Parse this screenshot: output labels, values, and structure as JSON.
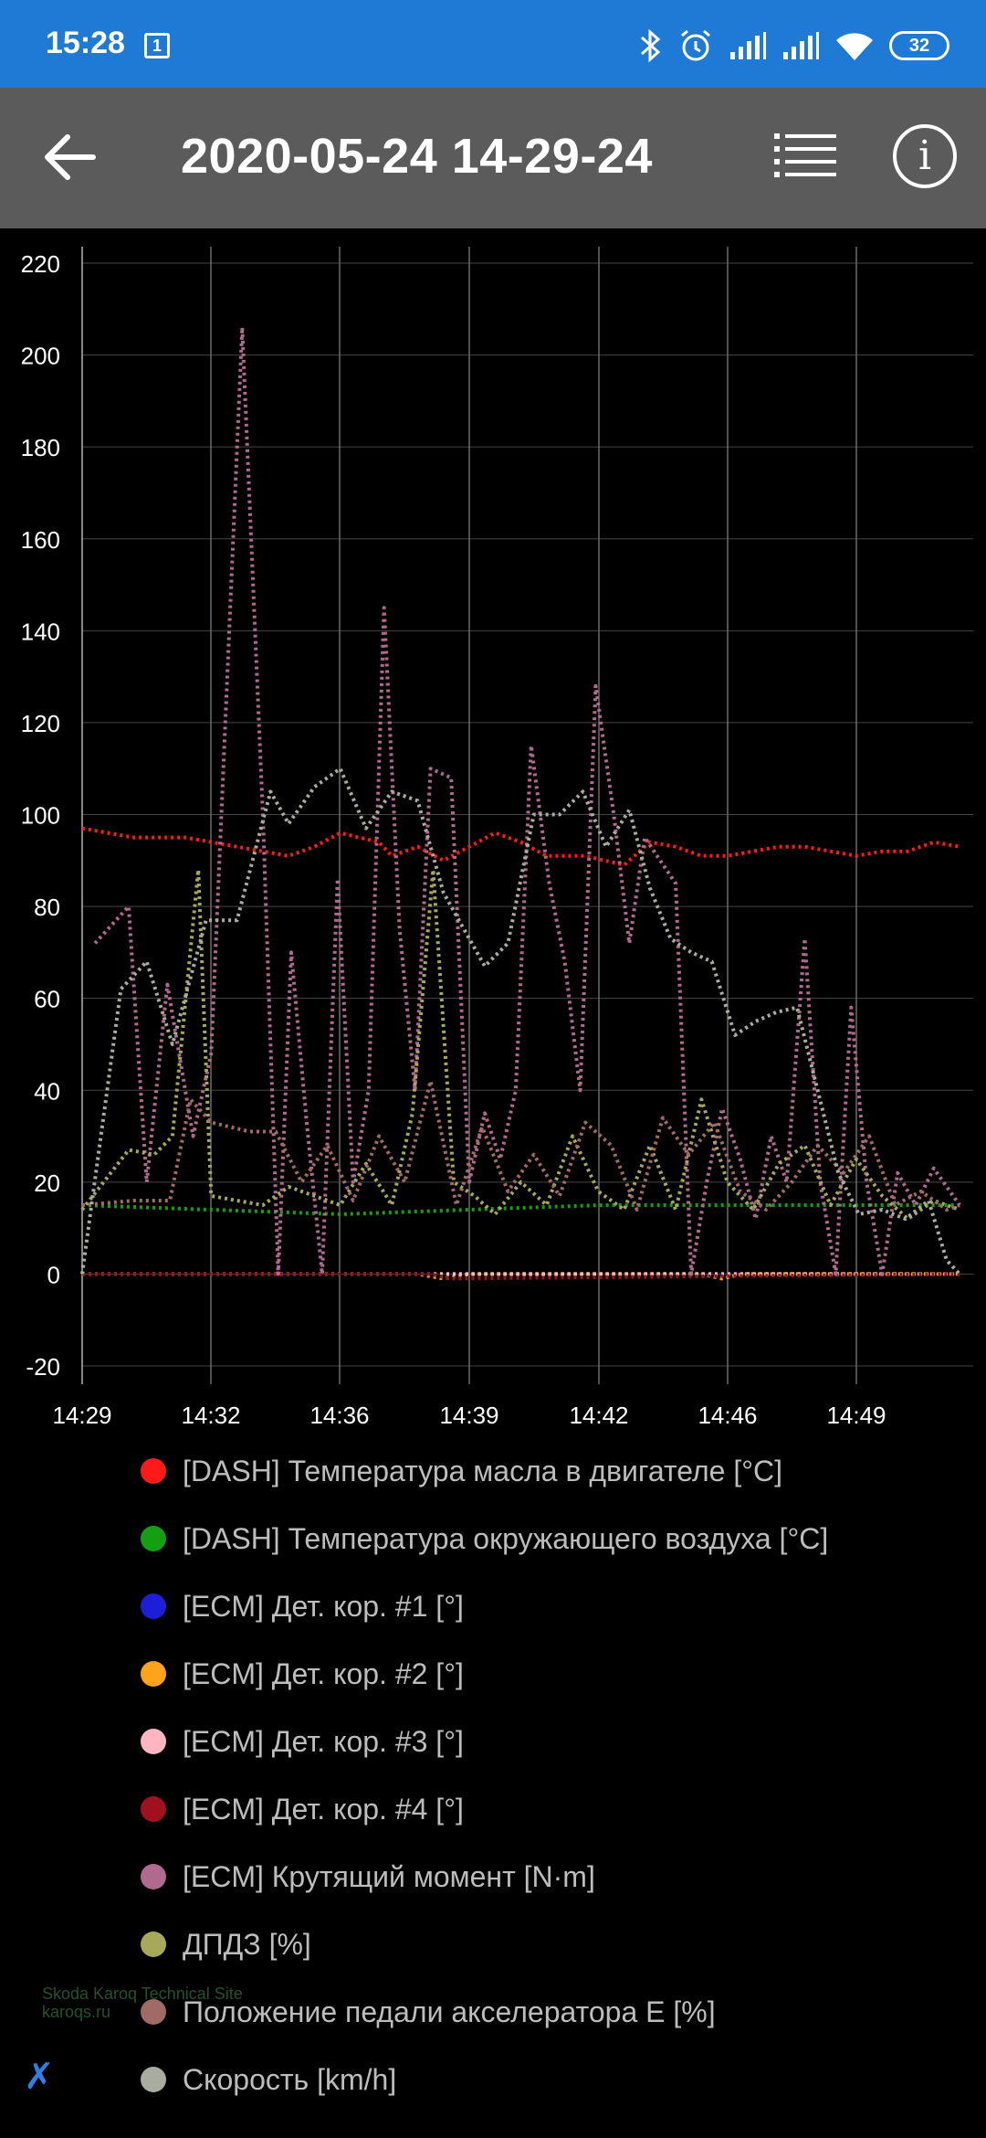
{
  "status": {
    "time": "15:28",
    "calendar_day": "1",
    "battery": "32",
    "icons": [
      "bluetooth-icon",
      "alarm-icon",
      "signal-icon",
      "signal-icon",
      "wifi-icon",
      "battery-icon"
    ]
  },
  "toolbar": {
    "title": "2020-05-24 14-29-24",
    "back_icon": "arrow-left-icon",
    "list_icon": "list-icon",
    "info_icon": "info-icon",
    "info_glyph": "i"
  },
  "chart_data": {
    "type": "line",
    "ylim": [
      -20,
      220
    ],
    "y_ticks": [
      -20,
      0,
      20,
      40,
      60,
      80,
      100,
      120,
      140,
      160,
      180,
      200,
      220
    ],
    "x_tick_labels": [
      "14:29",
      "14:32",
      "14:36",
      "14:39",
      "14:42",
      "14:46",
      "14:49"
    ],
    "grid": true,
    "legend_position": "bottom",
    "series": [
      {
        "name": "[DASH] Температура масла в двигателе [°C]",
        "color": "#ff1a1a",
        "x": [
          0,
          2,
          4,
          6,
          8,
          9,
          10,
          11.5,
          12,
          13,
          14,
          15,
          16,
          17,
          18,
          19.5,
          21,
          22,
          23,
          24,
          25,
          26,
          27,
          28,
          29,
          30,
          31,
          32,
          33,
          34
        ],
        "values": [
          97,
          95,
          95,
          93,
          91,
          93,
          96,
          94,
          91,
          93,
          90,
          93,
          96,
          94,
          91,
          91,
          89,
          94,
          93,
          91,
          91,
          92,
          93,
          93,
          92,
          91,
          92,
          92,
          94,
          93
        ]
      },
      {
        "name": "[DASH] Температура окружающего воздуха [°C]",
        "color": "#12a012",
        "x": [
          0,
          5,
          10,
          15,
          20,
          25,
          30,
          34
        ],
        "values": [
          15,
          14,
          13,
          14,
          15,
          15,
          15,
          15
        ]
      },
      {
        "name": "[ECM] Дет. кор. #1 [°]",
        "color": "#1e1ed8",
        "x": [
          0,
          34
        ],
        "values": [
          0,
          0
        ]
      },
      {
        "name": "[ECM] Дет. кор. #2 [°]",
        "color": "#ffa31a",
        "x": [
          0,
          13,
          14,
          15,
          20.5,
          21.5,
          24,
          24.8,
          25.6,
          34
        ],
        "values": [
          0,
          0,
          -1,
          0,
          0,
          0,
          0,
          -1,
          0,
          0
        ]
      },
      {
        "name": "[ECM] Дет. кор. #3 [°]",
        "color": "#ffb6c1",
        "x": [
          0,
          20.5,
          21.5,
          34
        ],
        "values": [
          0,
          0,
          0,
          0
        ]
      },
      {
        "name": "[ECM] Дет. кор. #4 [°]",
        "color": "#a01020",
        "x": [
          0,
          13.5,
          14.3,
          34
        ],
        "values": [
          0,
          0,
          -1,
          0
        ]
      },
      {
        "name": "[ECM] Крутящий момент [N·m]",
        "color": "#b06a8e",
        "x": [
          0.5,
          1.8,
          2.5,
          3.3,
          4.3,
          5.0,
          6.2,
          7.0,
          7.6,
          8.1,
          8.7,
          9.3,
          9.9,
          10.5,
          11.1,
          11.7,
          12.3,
          12.9,
          13.5,
          14.3,
          15.0,
          15.6,
          16.2,
          16.8,
          17.4,
          18.1,
          18.7,
          19.3,
          19.9,
          20.6,
          21.2,
          21.8,
          22.4,
          23.0,
          23.6,
          24.2,
          24.8,
          25.5,
          26.1,
          26.7,
          27.3,
          28.0,
          28.6,
          29.2,
          29.8,
          30.4,
          31.0,
          31.6,
          32.3,
          33.0,
          34
        ],
        "values": [
          72,
          80,
          20,
          63,
          30,
          48,
          206,
          100,
          0,
          70,
          33,
          0,
          86,
          20,
          40,
          145,
          75,
          40,
          110,
          108,
          20,
          35,
          25,
          40,
          115,
          85,
          68,
          40,
          128,
          100,
          72,
          95,
          90,
          85,
          0,
          20,
          36,
          25,
          12,
          30,
          20,
          73,
          20,
          0,
          58,
          20,
          0,
          22,
          15,
          23,
          15
        ]
      },
      {
        "name": "ДПДЗ [%]",
        "color": "#a8a85a",
        "x": [
          0,
          1.8,
          2.8,
          3.5,
          4.5,
          5.0,
          6.0,
          7.0,
          8.0,
          9.0,
          10.0,
          11.0,
          12.0,
          12.8,
          13.6,
          14.4,
          15.2,
          16.0,
          17.0,
          18.0,
          19.0,
          20.0,
          21.0,
          22.0,
          23.0,
          24.0,
          25.0,
          26.0,
          27.0,
          28.0,
          29.0,
          30.0,
          31.0,
          32.0,
          33.0,
          34
        ],
        "values": [
          14,
          27,
          26,
          30,
          88,
          17,
          16,
          15,
          19,
          17,
          15,
          24,
          15,
          35,
          88,
          20,
          17,
          13,
          20,
          15,
          30,
          18,
          14,
          28,
          14,
          38,
          20,
          14,
          24,
          28,
          15,
          25,
          17,
          12,
          16,
          14
        ]
      },
      {
        "name": "Положение педали акселератора E [%]",
        "color": "#a06a66",
        "x": [
          0,
          2,
          3.4,
          4.2,
          5.0,
          6.5,
          7.5,
          8.5,
          9.5,
          10.5,
          11.5,
          12.5,
          13.5,
          14.5,
          15.5,
          16.5,
          17.5,
          18.5,
          19.5,
          20.5,
          21.5,
          22.5,
          23.5,
          24.5,
          25.5,
          26.5,
          27.5,
          28.5,
          29.5,
          30.5,
          31.5,
          32.5,
          33.5,
          34
        ],
        "values": [
          15,
          16,
          16,
          38,
          33,
          31,
          31,
          20,
          28,
          16,
          30,
          20,
          42,
          15,
          32,
          18,
          26,
          17,
          33,
          28,
          14,
          34,
          26,
          33,
          18,
          14,
          20,
          28,
          22,
          30,
          15,
          18,
          14,
          15
        ]
      },
      {
        "name": "Скорость [km/h]",
        "color": "#a8ad9f",
        "x": [
          0,
          1.5,
          2.5,
          3.5,
          4.8,
          6.0,
          7.3,
          8.0,
          9.0,
          10.0,
          11.0,
          12.0,
          13.0,
          14.0,
          14.8,
          15.6,
          16.5,
          17.5,
          18.5,
          19.4,
          20.3,
          21.2,
          22.0,
          22.8,
          23.6,
          24.4,
          25.3,
          26.1,
          26.9,
          27.7,
          28.5,
          29.3,
          30.1,
          31.0,
          31.9,
          32.8,
          33.5,
          34
        ],
        "values": [
          0,
          62,
          68,
          50,
          77,
          77,
          105,
          98,
          106,
          110,
          97,
          105,
          103,
          83,
          75,
          67,
          72,
          100,
          100,
          105,
          93,
          101,
          84,
          73,
          70,
          68,
          52,
          55,
          57,
          58,
          40,
          22,
          13,
          14,
          12,
          16,
          3,
          0
        ]
      }
    ]
  }
}
